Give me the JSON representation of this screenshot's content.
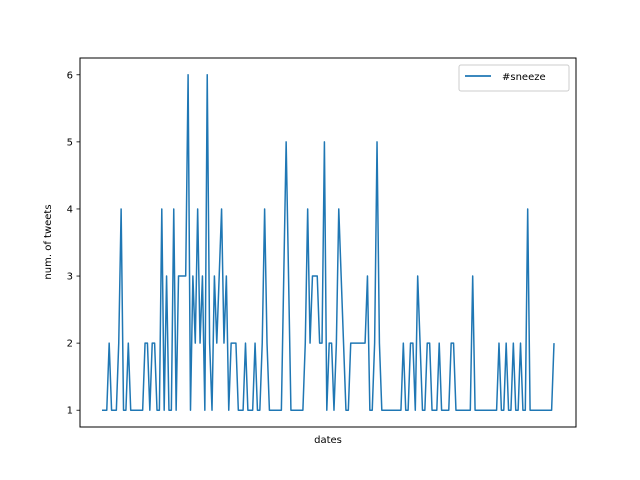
{
  "chart_data": {
    "type": "line",
    "title": "",
    "xlabel": "dates",
    "ylabel": "num. of tweets",
    "ylim": [
      0.75,
      6.25
    ],
    "yticks": [
      1,
      2,
      3,
      4,
      5,
      6
    ],
    "x_tick_labels_shown": false,
    "grid": false,
    "legend": {
      "placement": "top-right"
    },
    "series": [
      {
        "name": "#sneeze",
        "color": "#1f77b4",
        "values": [
          1,
          1,
          1,
          2,
          1,
          1,
          1,
          2,
          4,
          1,
          1,
          2,
          1,
          1,
          1,
          1,
          1,
          1,
          2,
          2,
          1,
          2,
          2,
          1,
          1,
          4,
          1,
          3,
          1,
          1,
          4,
          1,
          3,
          3,
          3,
          3,
          6,
          1,
          3,
          2,
          4,
          2,
          3,
          1,
          6,
          2,
          1,
          3,
          2,
          3,
          4,
          2,
          3,
          1,
          2,
          2,
          2,
          1,
          1,
          1,
          2,
          1,
          1,
          1,
          2,
          1,
          1,
          2,
          4,
          2,
          1,
          1,
          1,
          1,
          1,
          1,
          3,
          5,
          3,
          1,
          1,
          1,
          1,
          1,
          1,
          2,
          4,
          2,
          3,
          3,
          3,
          2,
          2,
          5,
          1,
          2,
          2,
          1,
          2,
          4,
          3,
          2,
          1,
          1,
          2,
          2,
          2,
          2,
          2,
          2,
          2,
          3,
          1,
          1,
          2,
          5,
          2,
          1,
          1,
          1,
          1,
          1,
          1,
          1,
          1,
          1,
          2,
          1,
          1,
          2,
          2,
          1,
          3,
          2,
          1,
          1,
          2,
          2,
          1,
          1,
          1,
          2,
          1,
          1,
          1,
          1,
          2,
          2,
          1,
          1,
          1,
          1,
          1,
          1,
          1,
          3,
          1,
          1,
          1,
          1,
          1,
          1,
          1,
          1,
          1,
          1,
          2,
          1,
          1,
          2,
          1,
          1,
          2,
          1,
          1,
          2,
          1,
          1,
          4,
          1,
          1,
          1,
          1,
          1,
          1,
          1,
          1,
          1,
          1,
          2
        ]
      }
    ]
  }
}
